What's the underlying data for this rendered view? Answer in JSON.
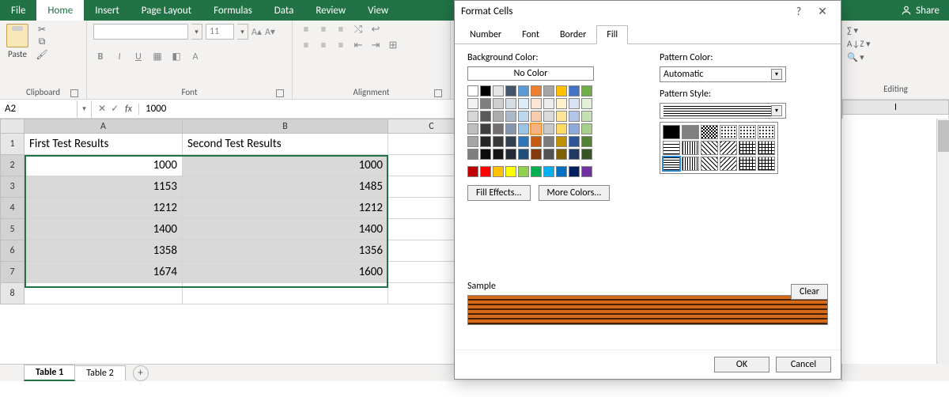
{
  "ribbon": {
    "tabs": [
      "File",
      "Home",
      "Insert",
      "Page Layout",
      "Formulas",
      "Data",
      "Review",
      "View"
    ],
    "active_tab": "Home",
    "share_label": "Share"
  },
  "groups": {
    "clipboard": {
      "label": "Clipboard",
      "paste_label": "Paste"
    },
    "font": {
      "label": "Font",
      "size": "11"
    },
    "alignment": {
      "label": "Alignment"
    },
    "editing": {
      "label": "Editing"
    }
  },
  "namebox": {
    "ref": "A2"
  },
  "formula": {
    "value": "1000"
  },
  "sheet": {
    "columns": [
      "A",
      "B",
      "C"
    ],
    "extra_column": "I",
    "headers": [
      "First Test Results",
      "Second Test Results"
    ],
    "rows": [
      [
        1000,
        1000
      ],
      [
        1153,
        1485
      ],
      [
        1212,
        1212
      ],
      [
        1400,
        1400
      ],
      [
        1358,
        1356
      ],
      [
        1674,
        1600
      ]
    ],
    "row_count_visible": 8,
    "tabs": [
      "Table 1",
      "Table 2"
    ],
    "active_tab": "Table 1"
  },
  "dialog": {
    "title": "Format Cells",
    "tabs": [
      "Number",
      "Font",
      "Border",
      "Fill"
    ],
    "active_tab": "Fill",
    "bg_label": "Background Color:",
    "no_color": "No Color",
    "fill_effects": "Fill Effects...",
    "more_colors": "More Colors...",
    "pattern_color_label": "Pattern Color:",
    "pattern_color_value": "Automatic",
    "pattern_style_label": "Pattern Style:",
    "sample_label": "Sample",
    "clear": "Clear",
    "ok": "OK",
    "cancel": "Cancel",
    "theme_row": [
      "#ffffff",
      "#000000",
      "#e7e6e6",
      "#44546a",
      "#5b9bd5",
      "#ed7d31",
      "#a5a5a5",
      "#ffc000",
      "#4472c4",
      "#70ad47"
    ],
    "theme_shades": [
      [
        "#f2f2f2",
        "#7f7f7f",
        "#d0cece",
        "#d6dce4",
        "#deebf6",
        "#fbe5d5",
        "#ededed",
        "#fff2cc",
        "#dae3f3",
        "#e2efd9"
      ],
      [
        "#d8d8d8",
        "#595959",
        "#aeabab",
        "#adb9ca",
        "#bdd7ee",
        "#f7cbac",
        "#dbdbdb",
        "#fee599",
        "#b4c6e7",
        "#c5e0b3"
      ],
      [
        "#bfbfbf",
        "#3f3f3f",
        "#757070",
        "#8496b0",
        "#9cc3e5",
        "#f4b183",
        "#c9c9c9",
        "#ffd965",
        "#8eaadb",
        "#a8d08d"
      ],
      [
        "#a5a5a5",
        "#262626",
        "#3a3838",
        "#323f4f",
        "#2e75b5",
        "#c55a11",
        "#7b7b7b",
        "#bf9000",
        "#2f5496",
        "#538135"
      ],
      [
        "#7f7f7f",
        "#0c0c0c",
        "#171616",
        "#222a35",
        "#1e4e79",
        "#833c0b",
        "#525252",
        "#7f6000",
        "#1f3864",
        "#375623"
      ]
    ],
    "standard_row": [
      "#c00000",
      "#ff0000",
      "#ffc000",
      "#ffff00",
      "#92d050",
      "#00b050",
      "#00b0f0",
      "#0070c0",
      "#002060",
      "#7030a0"
    ],
    "selected_bg_index": [
      2,
      5
    ],
    "sample_colors": {
      "dark": "#4a1e00",
      "light": "#d56a1a"
    }
  }
}
